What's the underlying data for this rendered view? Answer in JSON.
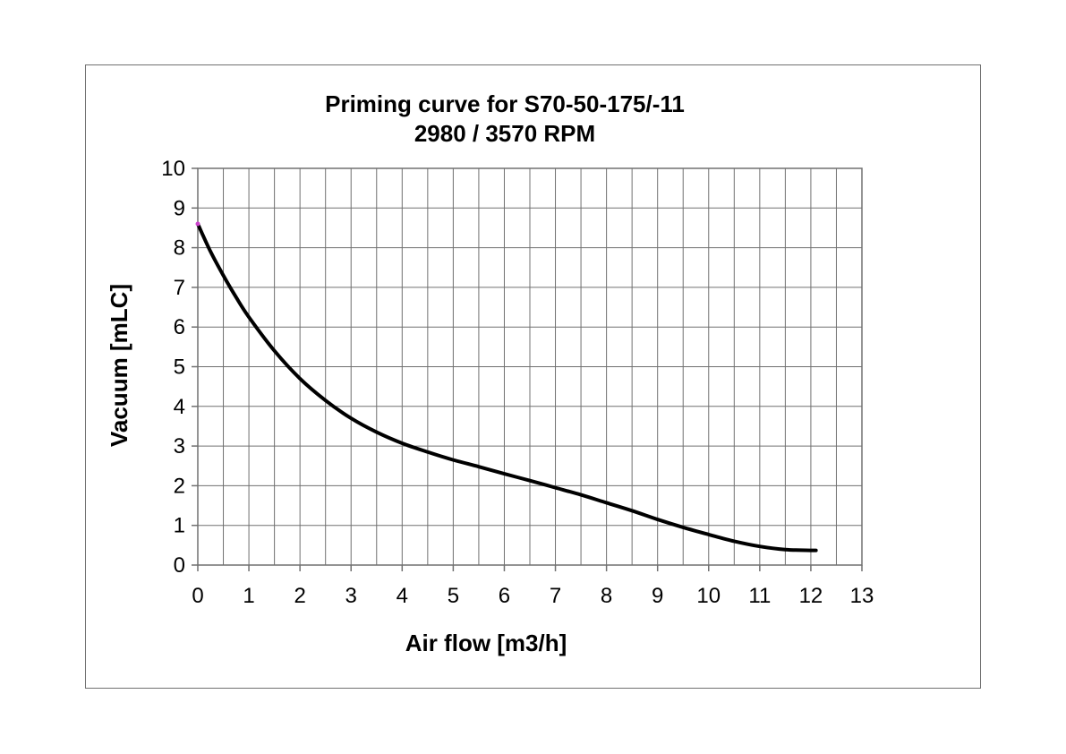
{
  "chart_data": {
    "type": "line",
    "title": [
      "Priming curve for S70-50-175/-11",
      "2980 / 3570 RPM"
    ],
    "xlabel": "Air flow [m3/h]",
    "ylabel": "Vacuum [mLC]",
    "xlim": [
      0,
      13
    ],
    "ylim": [
      0,
      10
    ],
    "x_major_ticks": [
      0,
      1,
      2,
      3,
      4,
      5,
      6,
      7,
      8,
      9,
      10,
      11,
      12,
      13
    ],
    "x_minor_step": 0.5,
    "y_major_ticks": [
      0,
      1,
      2,
      3,
      4,
      5,
      6,
      7,
      8,
      9,
      10
    ],
    "grid": true,
    "line_color": "#000000",
    "marker_color": "#cc44cc",
    "series": [
      {
        "x": [
          0,
          0.25,
          0.5,
          0.75,
          1,
          1.5,
          2,
          2.5,
          3,
          3.5,
          4,
          4.5,
          5,
          5.5,
          6,
          6.5,
          7,
          7.5,
          8,
          8.5,
          9,
          9.5,
          10,
          10.5,
          11,
          11.5,
          12,
          12.1
        ],
        "values": [
          8.6,
          7.9,
          7.3,
          6.75,
          6.25,
          5.4,
          4.7,
          4.15,
          3.7,
          3.35,
          3.07,
          2.85,
          2.65,
          2.48,
          2.3,
          2.13,
          1.95,
          1.77,
          1.57,
          1.37,
          1.15,
          0.95,
          0.77,
          0.6,
          0.47,
          0.39,
          0.37,
          0.37
        ]
      }
    ]
  }
}
